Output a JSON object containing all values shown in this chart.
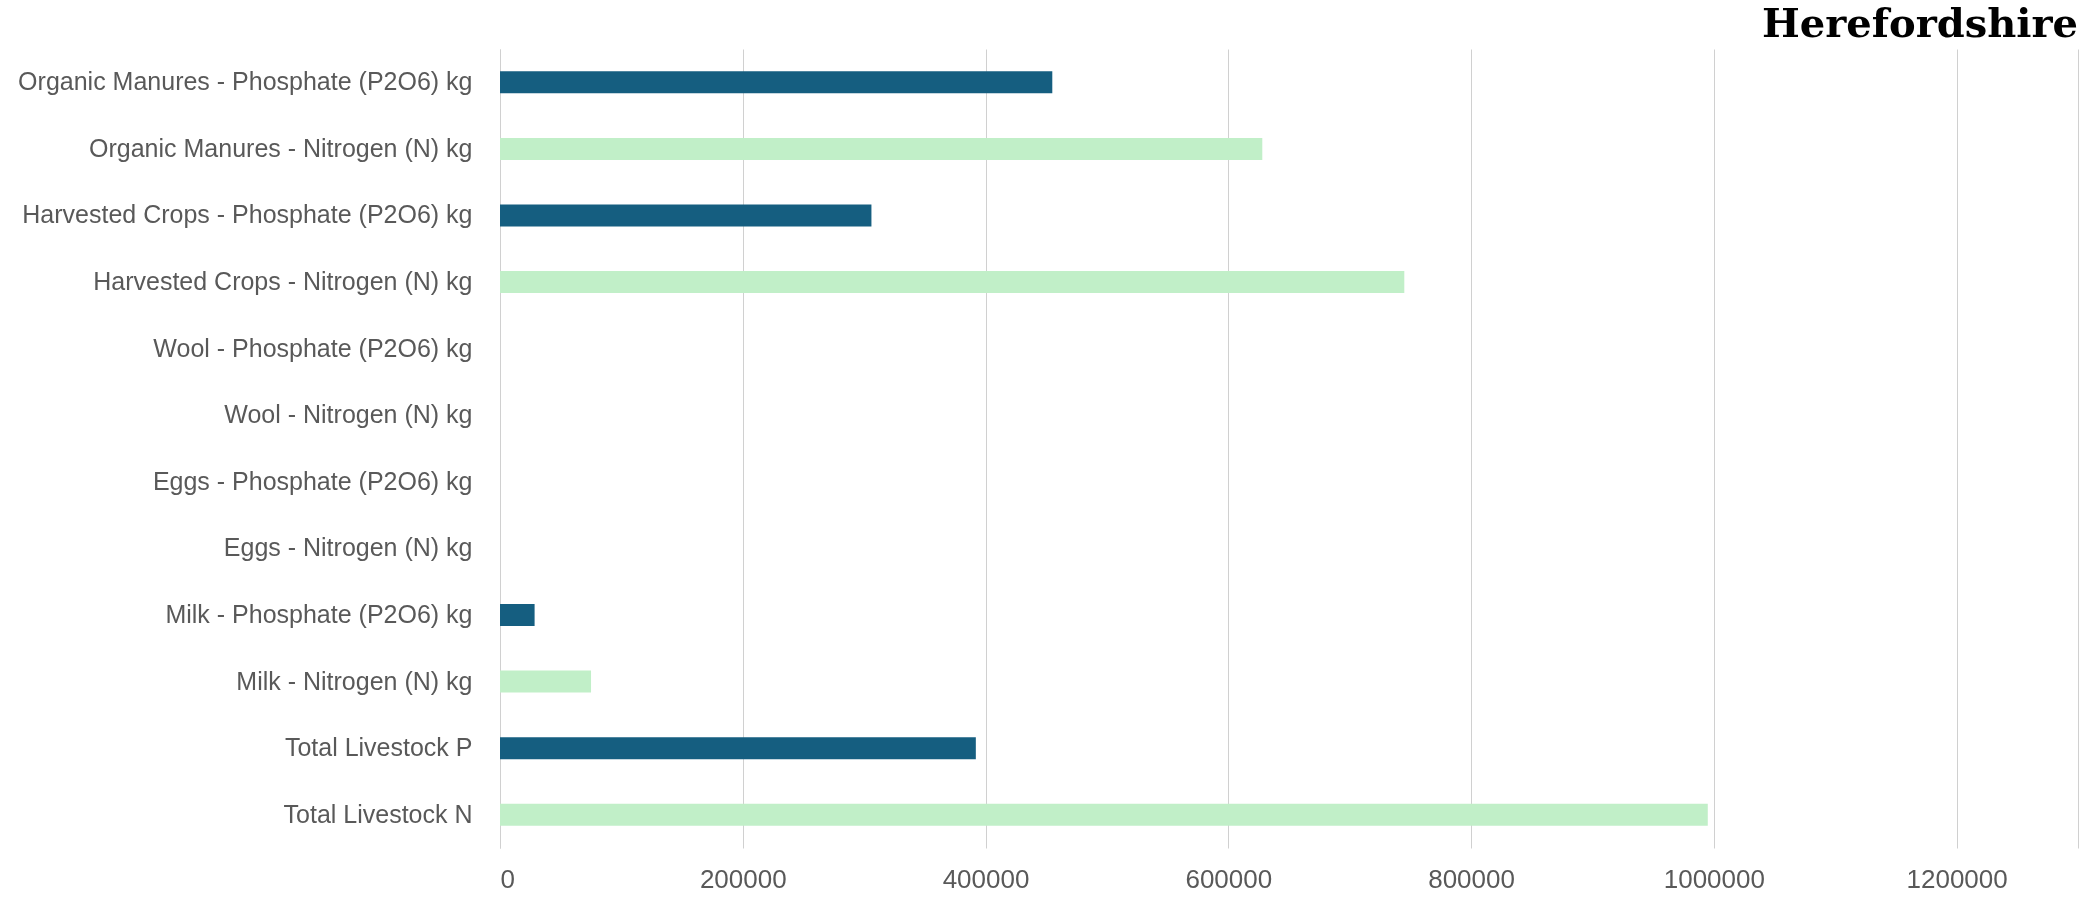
{
  "chart_data": {
    "type": "bar",
    "orientation": "horizontal",
    "title": "Herefordshire",
    "categories": [
      "Organic Manures  - Phosphate (P2O6) kg",
      "Organic Manures - Nitrogen (N) kg",
      "Harvested Crops - Phosphate (P2O6) kg",
      "Harvested Crops - Nitrogen (N) kg",
      "Wool - Phosphate (P2O6) kg",
      "Wool - Nitrogen (N) kg",
      "Eggs - Phosphate (P2O6) kg",
      "Eggs - Nitrogen (N) kg",
      "Milk - Phosphate (P2O6) kg",
      "Milk - Nitrogen (N) kg",
      "Total Livestock P",
      "Total Livestock N"
    ],
    "values": [
      455000,
      628000,
      306000,
      745000,
      0,
      0,
      0,
      0,
      28500,
      75000,
      392000,
      995000
    ],
    "colors": [
      "#155e80",
      "#c1efc8",
      "#155e80",
      "#c1efc8",
      "#155e80",
      "#c1efc8",
      "#155e80",
      "#c1efc8",
      "#155e80",
      "#c1efc8",
      "#155e80",
      "#c1efc8"
    ],
    "xlim": [
      0,
      1300000
    ],
    "xticks": [
      0,
      200000,
      400000,
      600000,
      800000,
      1000000,
      1200000,
      {
        "value": 1300000,
        "label": null
      }
    ],
    "grid": "x",
    "legend": false
  }
}
